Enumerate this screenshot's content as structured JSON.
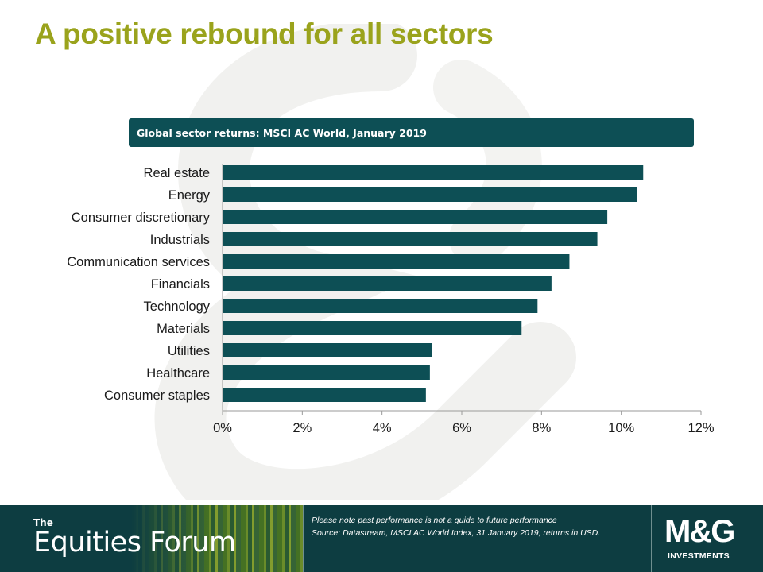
{
  "slide": {
    "title": "A positive rebound for all sectors"
  },
  "chart_data": {
    "type": "bar",
    "orientation": "horizontal",
    "title": "Global sector returns:  MSCI AC World, January 2019",
    "categories": [
      "Real estate",
      "Energy",
      "Consumer discretionary",
      "Industrials",
      "Communication services",
      "Financials",
      "Technology",
      "Materials",
      "Utilities",
      "Healthcare",
      "Consumer staples"
    ],
    "values": [
      10.55,
      10.4,
      9.65,
      9.4,
      8.7,
      8.25,
      7.9,
      7.5,
      5.25,
      5.2,
      5.1
    ],
    "xlim": [
      0,
      12
    ],
    "xticks": [
      0,
      2,
      4,
      6,
      8,
      10,
      12
    ],
    "tick_labels": [
      "0%",
      "2%",
      "4%",
      "6%",
      "8%",
      "10%",
      "12%"
    ],
    "grid": false,
    "bar_color": "#0d4f55"
  },
  "footer": {
    "brand_the": "The",
    "brand_name": "Equities Forum",
    "disclaimer_line1": "Please note past performance is not a guide to future performance",
    "disclaimer_line2": "Source: Datastream, MSCI AC World Index, 31 January 2019, returns in USD.",
    "logo_main": "M&G",
    "logo_sub": "INVESTMENTS"
  },
  "colors": {
    "title": "#9aa31c",
    "footer_bg": "#0d3d41",
    "bar": "#0d4f55"
  }
}
